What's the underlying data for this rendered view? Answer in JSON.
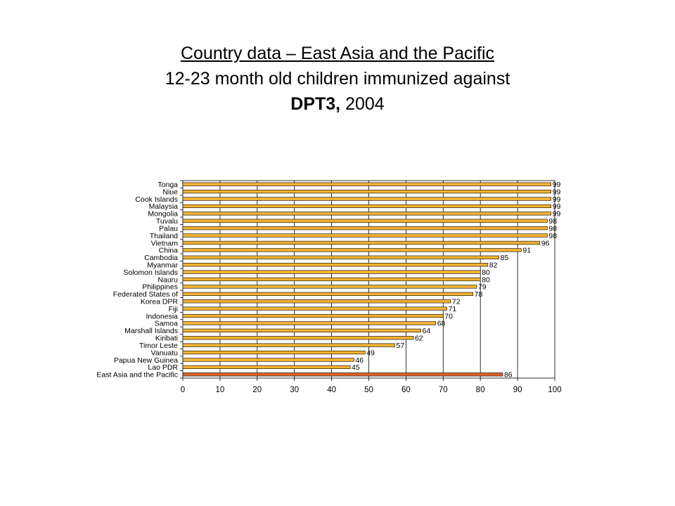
{
  "title": {
    "line1": "Country data – East Asia and the Pacific",
    "line2": "12-23 month old children immunized against",
    "line3_bold": "DPT3,",
    "line3_rest": " 2004"
  },
  "chart_data": {
    "type": "bar",
    "orientation": "horizontal",
    "categories": [
      "Tonga",
      "Niue",
      "Cook Islands",
      "Malaysia",
      "Mongolia",
      "Tuvalu",
      "Palau",
      "Thailand",
      "Vietnam",
      "China",
      "Cambodia",
      "Myanmar",
      "Solomon Islands",
      "Nauru",
      "Philippines",
      "Federated States of",
      "Korea DPR",
      "Fiji",
      "Indonesia",
      "Samoa",
      "Marshall Islands",
      "Kiribati",
      "Timor Leste",
      "Vanuatu",
      "Papua New Guinea",
      "Lao PDR",
      "East Asia and the Pacific"
    ],
    "values": [
      99,
      99,
      99,
      99,
      99,
      98,
      98,
      98,
      96,
      91,
      85,
      82,
      80,
      80,
      79,
      78,
      72,
      71,
      70,
      68,
      64,
      62,
      57,
      49,
      46,
      45,
      86
    ],
    "xlim": [
      0,
      100
    ],
    "xticks": [
      0,
      10,
      20,
      30,
      40,
      50,
      60,
      70,
      80,
      90,
      100
    ],
    "grid": "vertical",
    "legend": "none",
    "colors": {
      "bar": "#f2b233",
      "highlight_bar": "#d8622b",
      "bar_edge": "#000000"
    },
    "highlight_category": "East Asia and the Pacific"
  }
}
